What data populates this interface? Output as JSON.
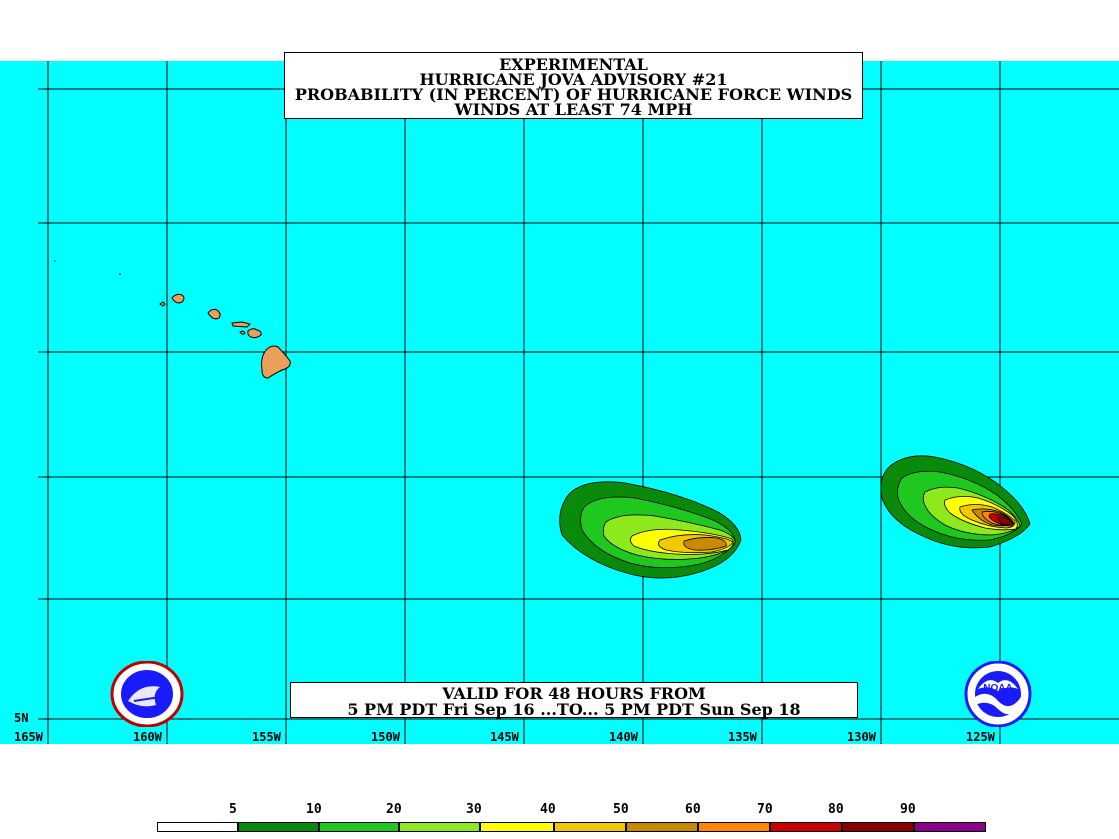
{
  "title": {
    "line1": "EXPERIMENTAL",
    "line2": "HURRICANE JOVA ADVISORY #21",
    "line3": "PROBABILITY (IN PERCENT) OF HURRICANE FORCE WINDS",
    "line4": "WINDS AT LEAST 74 MPH"
  },
  "valid": {
    "line1": "VALID FOR 48 HOURS FROM",
    "line2": "5 PM PDT Fri Sep 16 ...TO... 5 PM PDT Sun Sep 18"
  },
  "axes": {
    "lon_labels": [
      "165W",
      "160W",
      "155W",
      "150W",
      "145W",
      "140W",
      "135W",
      "130W",
      "125W"
    ],
    "lat_labels": [
      "5N"
    ]
  },
  "legend": {
    "labels": [
      "5",
      "10",
      "20",
      "30",
      "40",
      "50",
      "60",
      "70",
      "80",
      "90"
    ],
    "colors": [
      "#ffffff",
      "#0a8a0a",
      "#1fc81f",
      "#8ee81e",
      "#ffff00",
      "#f2c800",
      "#c88a00",
      "#ff8800",
      "#c80000",
      "#8a0000",
      "#8a008a"
    ]
  },
  "colors": {
    "ocean": "#00ffff",
    "land": "#e9a05a",
    "grid": "#000000"
  },
  "logos": {
    "left": "nws-logo",
    "right": "noaa-logo",
    "right_text": "NOAA"
  }
}
